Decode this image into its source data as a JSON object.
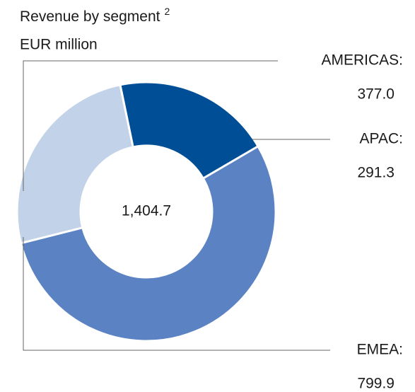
{
  "chart_data": {
    "type": "donut",
    "title": "Revenue by segment",
    "title_footnote": "2",
    "subtitle": "EUR million",
    "center_text": "1,404.7",
    "categories": [
      "APAC:",
      "EMEA:",
      "AMERICAS:"
    ],
    "values": [
      291.3,
      799.9,
      377.0
    ],
    "value_labels": [
      "291.3",
      "799.9",
      "377.0"
    ],
    "colors": [
      "#004f96",
      "#5b83c4",
      "#c2d2e8"
    ]
  }
}
